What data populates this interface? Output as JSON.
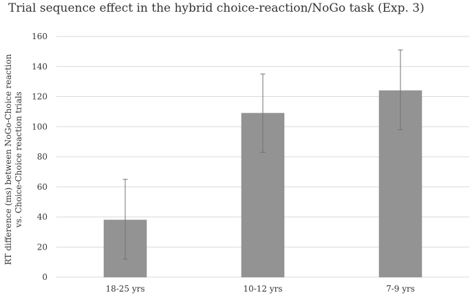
{
  "chart_data": {
    "type": "bar",
    "title": "Trial sequence effect in the hybrid choice-reaction/NoGo task (Exp. 3)",
    "xlabel": "",
    "ylabel_lines": [
      "RT difference (ms) between NoGo-Choice reaction",
      "vs. Choice-Choice reaction trials"
    ],
    "categories": [
      "18-25 yrs",
      "10-12 yrs",
      "7-9 yrs"
    ],
    "values": [
      38,
      109,
      124
    ],
    "error_low": [
      12,
      83,
      98
    ],
    "error_high": [
      65,
      135,
      151
    ],
    "ylim": [
      0,
      160
    ],
    "yticks": [
      0,
      20,
      40,
      60,
      80,
      100,
      120,
      140,
      160
    ],
    "grid": true,
    "bar_color": "#939393",
    "grid_color": "#d9d9d9",
    "error_color": "#707070"
  }
}
